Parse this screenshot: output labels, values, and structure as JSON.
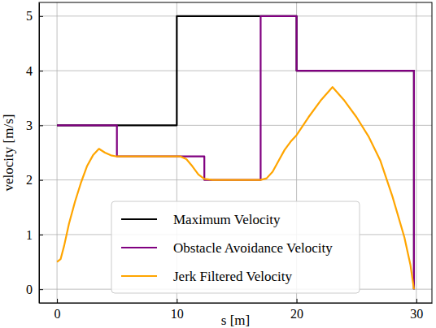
{
  "chart_data": {
    "type": "line",
    "xlabel": "s [m]",
    "ylabel": "velocity [m/s]",
    "xlim": [
      -1.5,
      31.3
    ],
    "ylim": [
      -0.25,
      5.25
    ],
    "xticks": [
      0,
      10,
      20,
      30
    ],
    "yticks": [
      0,
      1,
      2,
      3,
      4,
      5
    ],
    "grid": true,
    "legend": "lower center",
    "series": [
      {
        "name": "Maximum Velocity",
        "color": "#000000",
        "x": [
          0,
          10,
          10,
          20,
          20,
          29.8,
          29.8
        ],
        "values": [
          3,
          3,
          5,
          5,
          4,
          4,
          0
        ]
      },
      {
        "name": "Obstacle Avoidance Velocity",
        "color": "#800080",
        "x": [
          0,
          5,
          5,
          12.3,
          12.3,
          17,
          17,
          20,
          20,
          29.8,
          29.8
        ],
        "values": [
          3,
          3,
          2.43,
          2.43,
          2,
          2,
          5,
          5,
          4,
          4,
          0
        ]
      },
      {
        "name": "Jerk Filtered Velocity",
        "color": "#ffa500",
        "x": [
          0,
          0.3,
          0.6,
          1,
          1.5,
          2,
          2.5,
          3,
          3.5,
          4,
          4.5,
          5,
          10.3,
          10.8,
          11.3,
          11.8,
          12.3,
          13,
          17,
          17.5,
          18,
          18.5,
          19,
          19.5,
          20,
          21,
          22,
          23,
          24,
          25,
          26,
          27,
          28,
          29,
          29.5,
          29.8
        ],
        "values": [
          0.5,
          0.55,
          0.8,
          1.2,
          1.6,
          1.95,
          2.25,
          2.45,
          2.57,
          2.5,
          2.45,
          2.43,
          2.43,
          2.38,
          2.25,
          2.1,
          2.02,
          2.0,
          2.0,
          2.03,
          2.15,
          2.35,
          2.55,
          2.7,
          2.82,
          3.15,
          3.45,
          3.7,
          3.45,
          3.15,
          2.8,
          2.35,
          1.7,
          0.95,
          0.45,
          0
        ]
      }
    ]
  }
}
